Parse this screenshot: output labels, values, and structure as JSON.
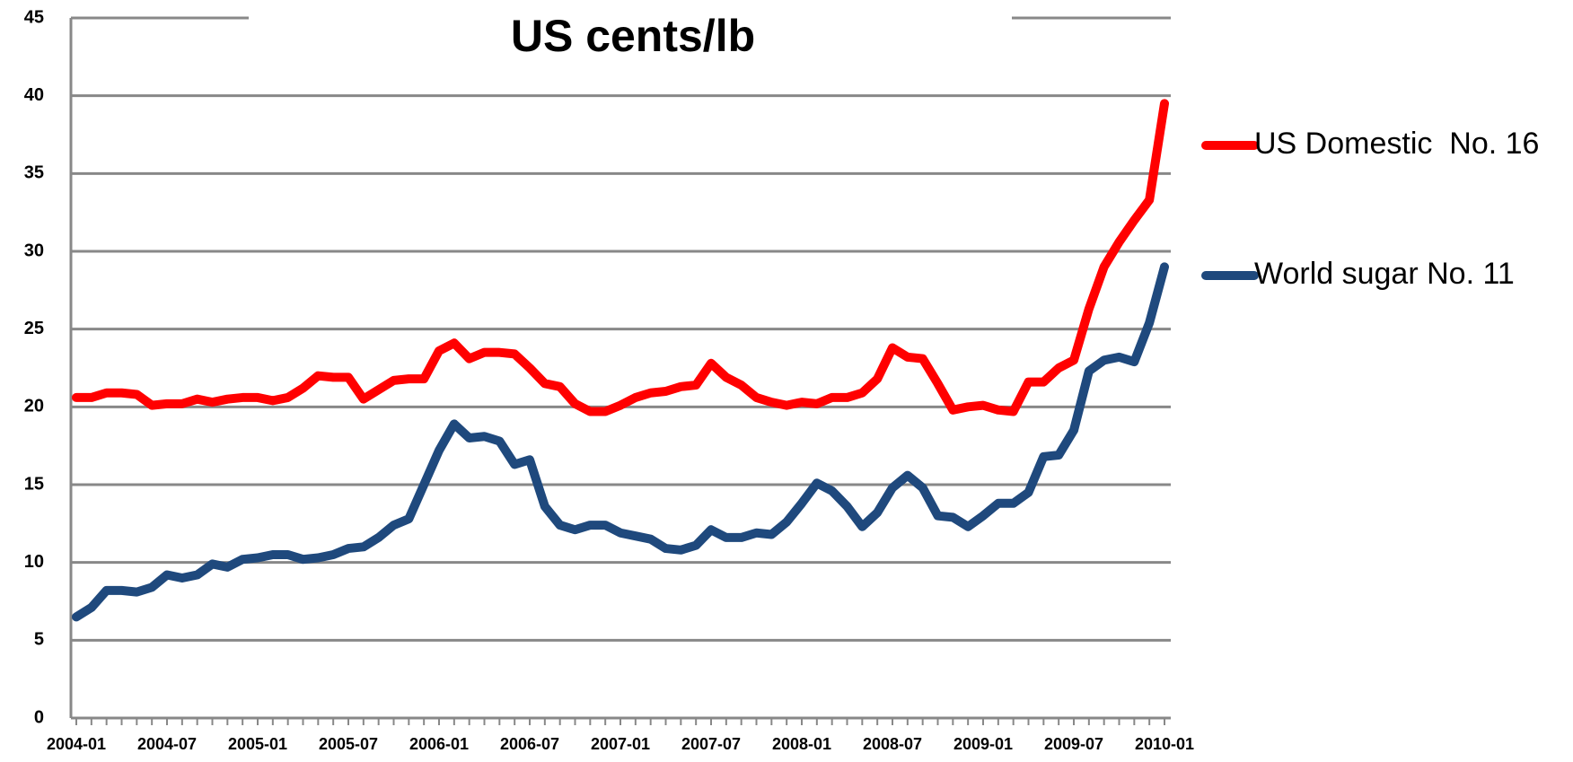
{
  "chart_data": {
    "type": "line",
    "title": "US cents/lb",
    "categories": [
      "2004-01",
      null,
      null,
      null,
      null,
      null,
      "2004-07",
      null,
      null,
      null,
      null,
      null,
      "2005-01",
      null,
      null,
      null,
      null,
      null,
      "2005-07",
      null,
      null,
      null,
      null,
      null,
      "2006-01",
      null,
      null,
      null,
      null,
      null,
      "2006-07",
      null,
      null,
      null,
      null,
      null,
      "2007-01",
      null,
      null,
      null,
      null,
      null,
      "2007-07",
      null,
      null,
      null,
      null,
      null,
      "2008-01",
      null,
      null,
      null,
      null,
      null,
      "2008-07",
      null,
      null,
      null,
      null,
      null,
      "2009-01",
      null,
      null,
      null,
      null,
      null,
      "2009-07",
      null,
      null,
      null,
      null,
      null,
      "2010-01"
    ],
    "series": [
      {
        "name": "US Domestic  No. 16",
        "color": "#ff0000",
        "values": [
          20.6,
          20.6,
          20.9,
          20.9,
          20.8,
          20.1,
          20.2,
          20.2,
          20.5,
          20.3,
          20.5,
          20.6,
          20.6,
          20.4,
          20.6,
          21.2,
          22.0,
          21.9,
          21.9,
          20.5,
          21.1,
          21.7,
          21.8,
          21.8,
          23.6,
          24.1,
          23.1,
          23.5,
          23.5,
          23.4,
          22.5,
          21.5,
          21.3,
          20.2,
          19.7,
          19.7,
          20.1,
          20.6,
          20.9,
          21.0,
          21.3,
          21.4,
          22.8,
          21.9,
          21.4,
          20.6,
          20.3,
          20.1,
          20.3,
          20.2,
          20.6,
          20.6,
          20.9,
          21.8,
          23.8,
          23.2,
          23.1,
          21.5,
          19.8,
          20.0,
          20.1,
          19.8,
          19.7,
          21.6,
          21.6,
          22.5,
          23.0,
          26.3,
          29.0,
          30.6,
          32.0,
          33.3,
          39.5
        ]
      },
      {
        "name": "World sugar No. 11",
        "color": "#1f497d",
        "values": [
          6.5,
          7.1,
          8.2,
          8.2,
          8.1,
          8.4,
          9.2,
          9.0,
          9.2,
          9.9,
          9.7,
          10.2,
          10.3,
          10.5,
          10.5,
          10.2,
          10.3,
          10.5,
          10.9,
          11.0,
          11.6,
          12.4,
          12.8,
          15.0,
          17.2,
          18.9,
          18.0,
          18.1,
          17.8,
          16.3,
          16.6,
          13.6,
          12.4,
          12.1,
          12.4,
          12.4,
          11.9,
          11.7,
          11.5,
          10.9,
          10.8,
          11.1,
          12.1,
          11.6,
          11.6,
          11.9,
          11.8,
          12.6,
          13.8,
          15.1,
          14.6,
          13.6,
          12.3,
          13.2,
          14.8,
          15.6,
          14.8,
          13.0,
          12.9,
          12.3,
          13.0,
          13.8,
          13.8,
          14.5,
          16.8,
          16.9,
          18.5,
          22.3,
          23.0,
          23.2,
          22.9,
          25.4,
          29.0
        ]
      }
    ],
    "ylim": [
      0,
      45
    ],
    "yticks": [
      0,
      5,
      10,
      15,
      20,
      25,
      30,
      35,
      40,
      45
    ],
    "grid": true,
    "legend": "right"
  }
}
